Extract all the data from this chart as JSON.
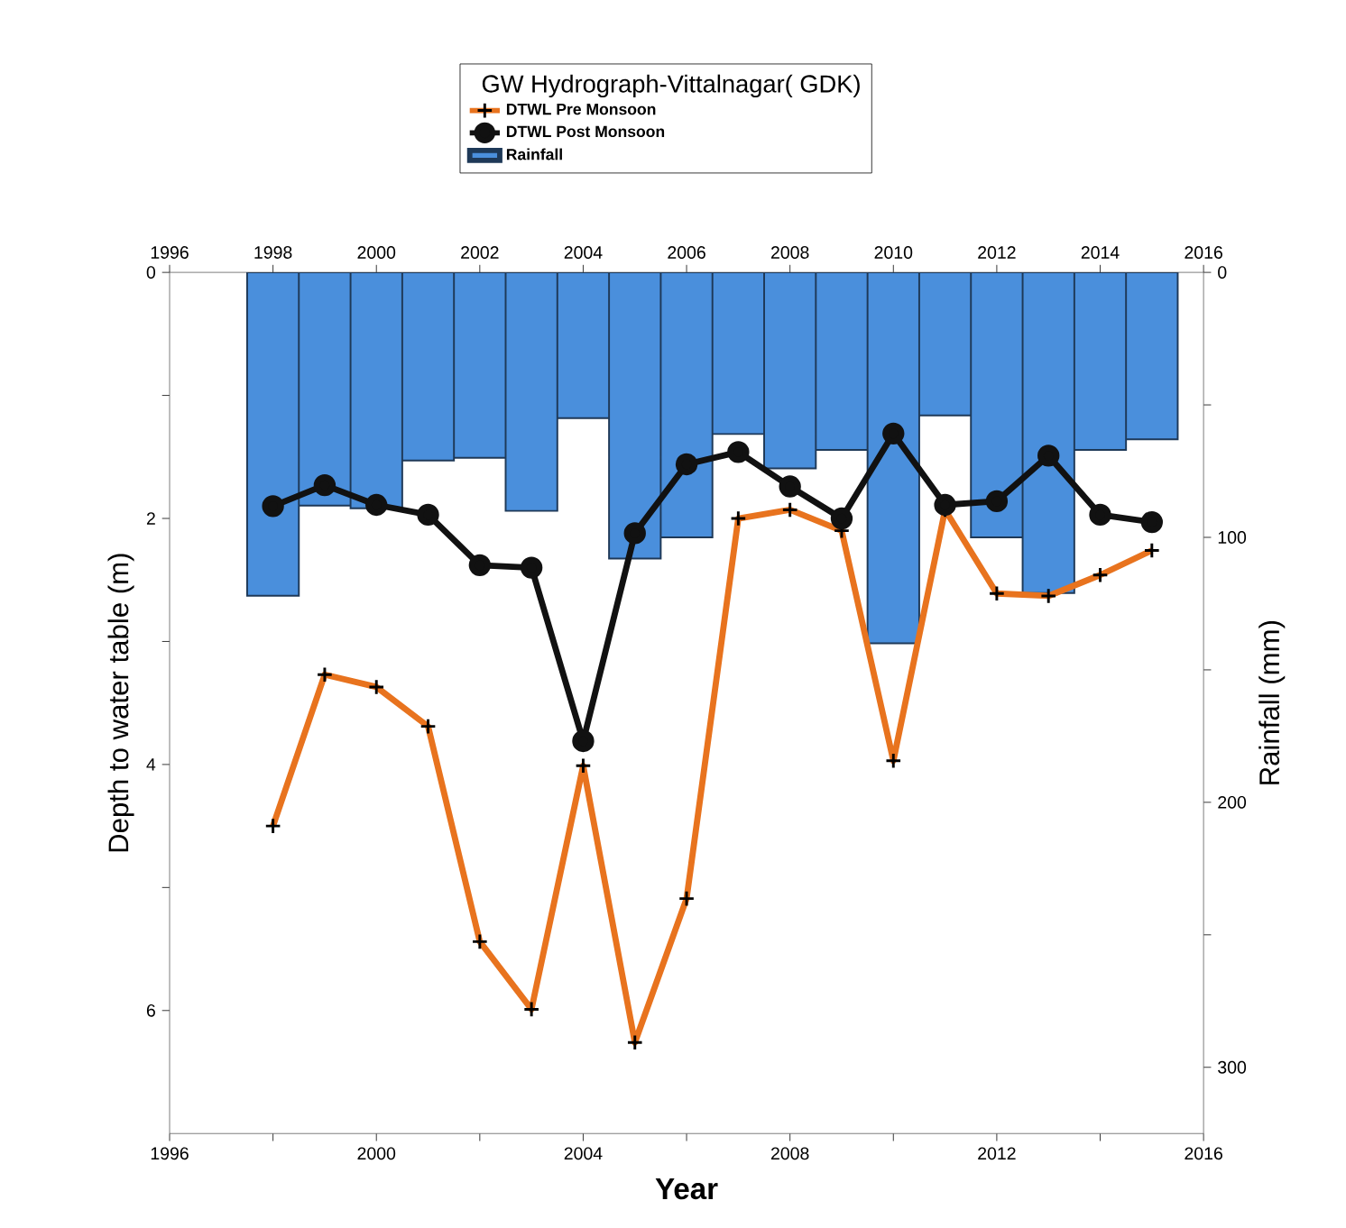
{
  "chart_data": {
    "type": "line",
    "title": "GW Hydrograph-Vittalnagar( GDK)",
    "xlabel": "Year",
    "ylabel": "Depth to water table (m)",
    "y2label": "Rainfall (mm)",
    "x": [
      1998,
      1999,
      2000,
      2001,
      2002,
      2003,
      2004,
      2005,
      2006,
      2007,
      2008,
      2009,
      2010,
      2011,
      2012,
      2013,
      2014,
      2015
    ],
    "series": [
      {
        "name": "DTWL Pre Monsoon",
        "color": "#e8731e",
        "marker": "cross",
        "line_style": "solid",
        "values": [
          4.5,
          3.27,
          3.37,
          3.69,
          5.44,
          5.99,
          4.01,
          6.26,
          5.09,
          2.0,
          1.93,
          2.1,
          3.97,
          1.93,
          2.61,
          2.63,
          2.46,
          2.26
        ]
      },
      {
        "name": "DTWL Post Monsoon",
        "color": "#111111",
        "marker": "circle",
        "line_style": "solid",
        "values": [
          1.9,
          1.73,
          1.89,
          1.97,
          2.38,
          2.4,
          3.81,
          2.12,
          1.56,
          1.46,
          1.74,
          2.0,
          1.31,
          1.89,
          1.86,
          1.49,
          1.97,
          2.03
        ]
      },
      {
        "name": "Rainfall",
        "type": "bar",
        "axis": "y2",
        "color": "#4a8fdc",
        "values": [
          122,
          88,
          89,
          71,
          70,
          90,
          55,
          108,
          100,
          61,
          74,
          67,
          140,
          54,
          100,
          121,
          67,
          63
        ]
      }
    ],
    "xlim": [
      1996,
      2016
    ],
    "xticks": [
      1996,
      {
        "value": 1998,
        "label": null
      },
      2000,
      {
        "value": 2002,
        "label": null
      },
      2004,
      {
        "value": 2006,
        "label": null
      },
      2008,
      {
        "value": 2010,
        "label": null
      },
      2012,
      {
        "value": 2014,
        "label": null
      },
      2016
    ],
    "x2lim": [
      1996,
      2016
    ],
    "x2ticks": [
      1996,
      1998,
      2000,
      2002,
      2004,
      2006,
      2008,
      2010,
      2012,
      2014,
      2016
    ],
    "ylim": [
      7,
      0
    ],
    "yticks": [
      0,
      {
        "value": 1,
        "label": null
      },
      2,
      {
        "value": 3,
        "label": null
      },
      4,
      {
        "value": 5,
        "label": null
      },
      6
    ],
    "y2lim": [
      325,
      0
    ],
    "y2ticks": [
      0,
      {
        "value": 50,
        "label": null
      },
      100,
      {
        "value": 150,
        "label": null
      },
      200,
      {
        "value": 250,
        "label": null
      },
      300
    ],
    "legend": "top",
    "grid": false
  }
}
